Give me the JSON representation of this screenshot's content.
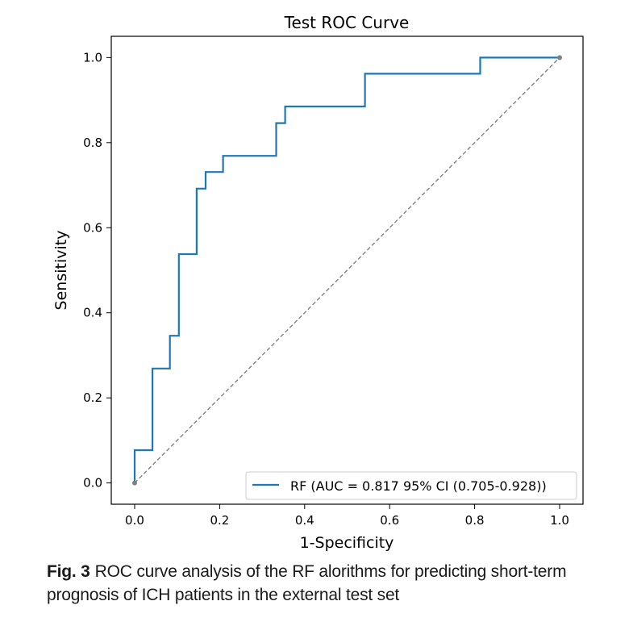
{
  "chart_data": {
    "type": "line",
    "title": "Test ROC Curve",
    "xlabel": "1-Specificity",
    "ylabel": "Sensitivity",
    "xlim": [
      -0.055,
      1.055
    ],
    "ylim": [
      -0.05,
      1.05
    ],
    "xticks": [
      "0.0",
      "0.2",
      "0.4",
      "0.6",
      "0.8",
      "1.0"
    ],
    "yticks": [
      "0.0",
      "0.2",
      "0.4",
      "0.6",
      "0.8",
      "1.0"
    ],
    "grid": false,
    "legend_position": "lower-right",
    "series": [
      {
        "name": "RF (AUC = 0.817 95% CI (0.705-0.928))",
        "color": "#1f77b4",
        "style": "step",
        "x": [
          0.0,
          0.0,
          0.042,
          0.042,
          0.083,
          0.083,
          0.104,
          0.104,
          0.146,
          0.146,
          0.167,
          0.167,
          0.208,
          0.208,
          0.333,
          0.333,
          0.354,
          0.354,
          0.542,
          0.542,
          0.813,
          0.813,
          1.0
        ],
        "y": [
          0.0,
          0.077,
          0.077,
          0.269,
          0.269,
          0.346,
          0.346,
          0.538,
          0.538,
          0.692,
          0.692,
          0.731,
          0.731,
          0.769,
          0.769,
          0.846,
          0.846,
          0.885,
          0.885,
          0.962,
          0.962,
          1.0,
          1.0
        ]
      },
      {
        "color": "#808080",
        "style": "dashed",
        "x": [
          0.0,
          1.0
        ],
        "y": [
          0.0,
          1.0
        ]
      }
    ]
  },
  "caption": {
    "label": "Fig. 3",
    "text": "ROC curve analysis of the RF alorithms for predicting short-term prognosis of ICH patients in the external test set"
  }
}
